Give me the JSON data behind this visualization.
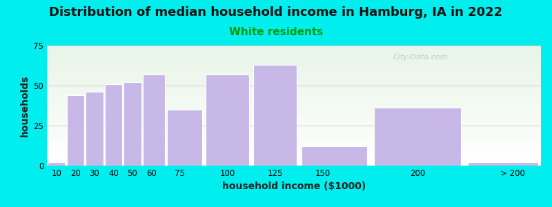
{
  "title": "Distribution of median household income in Hamburg, IA in 2022",
  "subtitle": "White residents",
  "xlabel": "household income ($1000)",
  "ylabel": "households",
  "bg_outer": "#00EEEE",
  "bg_inner_top": "#e8f5e8",
  "bg_inner_bottom": "#f8fff8",
  "bar_color": "#c8b8e8",
  "bar_edge_color": "#ffffff",
  "categories": [
    "10",
    "20",
    "30",
    "40",
    "50",
    "60",
    "75",
    "100",
    "125",
    "150",
    "200",
    "> 200"
  ],
  "values": [
    2,
    44,
    46,
    51,
    52,
    57,
    35,
    57,
    63,
    12,
    36,
    2
  ],
  "edges": [
    5,
    15,
    25,
    35,
    45,
    55,
    67.5,
    87.5,
    112.5,
    137.5,
    175,
    225,
    265
  ],
  "ylim": [
    0,
    75
  ],
  "yticks": [
    0,
    25,
    50,
    75
  ],
  "xlim": [
    5,
    265
  ],
  "xtick_positions": [
    10,
    20,
    30,
    40,
    50,
    60,
    75,
    100,
    125,
    150,
    200,
    250
  ],
  "xtick_labels": [
    "10",
    "20",
    "30",
    "40",
    "50",
    "60",
    "75",
    "100",
    "125",
    "150",
    "200",
    "> 200"
  ],
  "watermark": "City-Data.com",
  "title_fontsize": 13,
  "subtitle_fontsize": 11,
  "subtitle_color": "#009900",
  "axis_label_fontsize": 10,
  "tick_fontsize": 8.5
}
